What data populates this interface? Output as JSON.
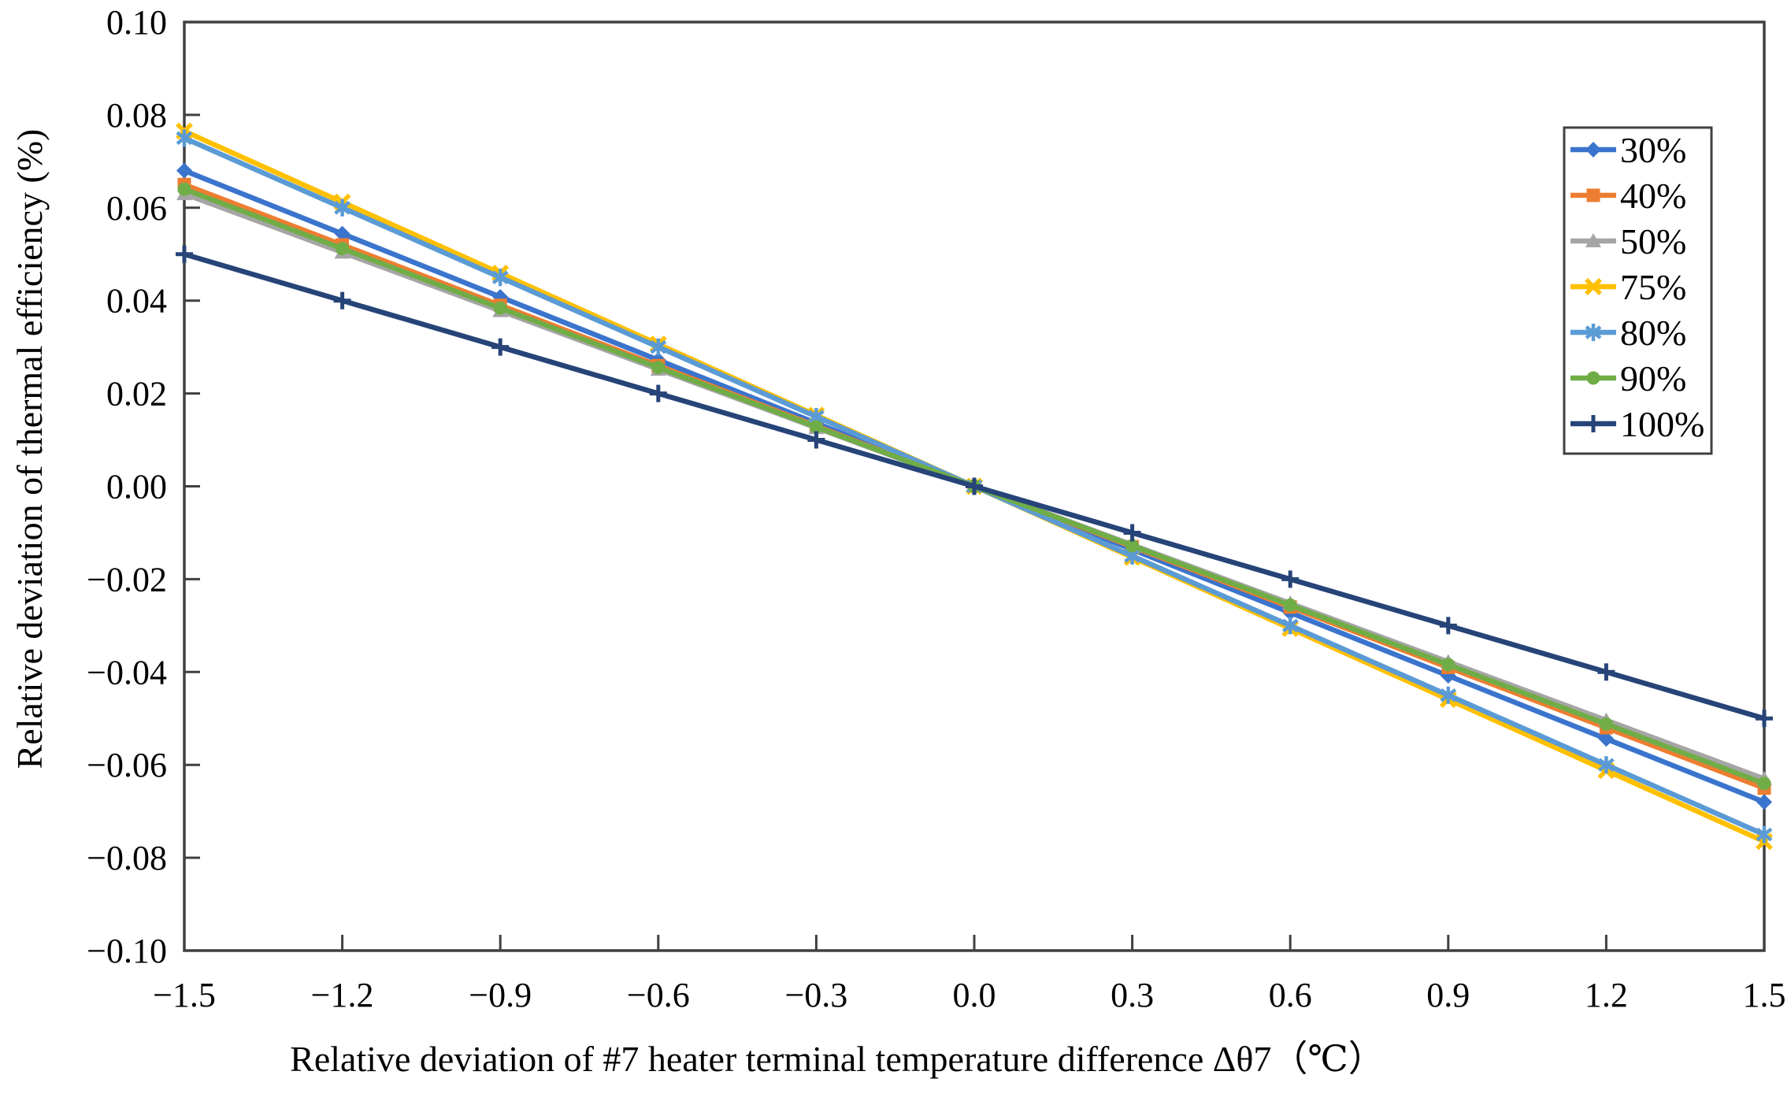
{
  "figure": {
    "background": "#ffffff",
    "axis_color": "#404040",
    "text_color": "#000000"
  },
  "chart_data": {
    "type": "line",
    "title": "",
    "xlabel": "Relative deviation of #7 heater terminal temperature difference Δθ7（℃）",
    "ylabel": "Relative deviation of thermal efficiency (%)",
    "xlim": [
      -1.5,
      1.5
    ],
    "ylim": [
      -0.1,
      0.1
    ],
    "grid": false,
    "plot_border": true,
    "legend_position": "right-top-inside",
    "x": [
      -1.5,
      -1.2,
      -0.9,
      -0.6,
      -0.3,
      0.0,
      0.3,
      0.6,
      0.9,
      1.2,
      1.5
    ],
    "x_tick_labels": [
      "−1.5",
      "−1.2",
      "−0.9",
      "−0.6",
      "−0.3",
      "0.0",
      "0.3",
      "0.6",
      "0.9",
      "1.2",
      "1.5"
    ],
    "y_tick_labels": [
      "0.10",
      "0.08",
      "0.06",
      "0.04",
      "0.02",
      "0.00",
      "−0.02",
      "−0.04",
      "−0.06",
      "−0.08",
      "−0.10"
    ],
    "series": [
      {
        "name": "30%",
        "color": "#3A74CC",
        "marker": "diamond",
        "values": [
          0.068,
          0.0544,
          0.0408,
          0.0272,
          0.0136,
          0.0,
          -0.0136,
          -0.0272,
          -0.0408,
          -0.0544,
          -0.068
        ]
      },
      {
        "name": "40%",
        "color": "#ED7D31",
        "marker": "square",
        "values": [
          0.065,
          0.052,
          0.039,
          0.026,
          0.013,
          0.0,
          -0.013,
          -0.026,
          -0.039,
          -0.052,
          -0.065
        ]
      },
      {
        "name": "50%",
        "color": "#A5A5A5",
        "marker": "triangle",
        "values": [
          0.063,
          0.0504,
          0.0378,
          0.0252,
          0.0126,
          0.0,
          -0.0126,
          -0.0252,
          -0.0378,
          -0.0504,
          -0.063
        ]
      },
      {
        "name": "75%",
        "color": "#FFC000",
        "marker": "x",
        "values": [
          0.0765,
          0.0612,
          0.0459,
          0.0306,
          0.0153,
          0.0,
          -0.0153,
          -0.0306,
          -0.0459,
          -0.0612,
          -0.0765
        ]
      },
      {
        "name": "80%",
        "color": "#5B9BD5",
        "marker": "asterisk",
        "values": [
          0.075,
          0.06,
          0.045,
          0.03,
          0.015,
          0.0,
          -0.015,
          -0.03,
          -0.045,
          -0.06,
          -0.075
        ]
      },
      {
        "name": "90%",
        "color": "#70AD47",
        "marker": "circle",
        "values": [
          0.064,
          0.0512,
          0.0384,
          0.0256,
          0.0128,
          0.0,
          -0.0128,
          -0.0256,
          -0.0384,
          -0.0512,
          -0.064
        ]
      },
      {
        "name": "100%",
        "color": "#264478",
        "marker": "plus",
        "values": [
          0.05,
          0.04,
          0.03,
          0.02,
          0.01,
          0.0,
          -0.01,
          -0.02,
          -0.03,
          -0.04,
          -0.05
        ]
      }
    ]
  }
}
